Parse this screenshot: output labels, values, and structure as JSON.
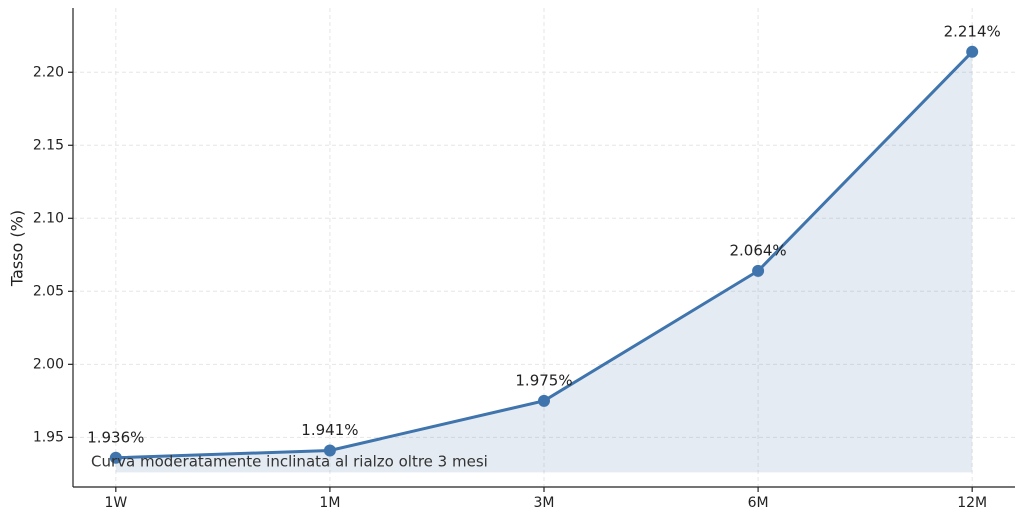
{
  "chart_data": {
    "type": "line",
    "y_label": "Tasso (%)",
    "categories": [
      "1W",
      "1M",
      "3M",
      "6M",
      "12M"
    ],
    "series": [
      {
        "name": "Tasso",
        "color": "#3f74ad",
        "values": [
          1.936,
          1.941,
          1.975,
          2.064,
          2.214
        ],
        "value_labels": [
          "1.936%",
          "1.941%",
          "1.975%",
          "2.064%",
          "2.214%"
        ]
      }
    ],
    "fill_base": 1.926,
    "ylim": [
      1.916,
      2.244
    ],
    "yticks": [
      {
        "value": 1.95,
        "label": "1.95"
      },
      {
        "value": 2.0,
        "label": "2.00"
      },
      {
        "value": 2.05,
        "label": "2.05"
      },
      {
        "value": 2.1,
        "label": "2.10"
      },
      {
        "value": 2.15,
        "label": "2.15"
      },
      {
        "value": 2.2,
        "label": "2.20"
      }
    ],
    "grid": true,
    "annotation": "Curva moderatamente inclinata al rialzo oltre 3 mesi"
  }
}
